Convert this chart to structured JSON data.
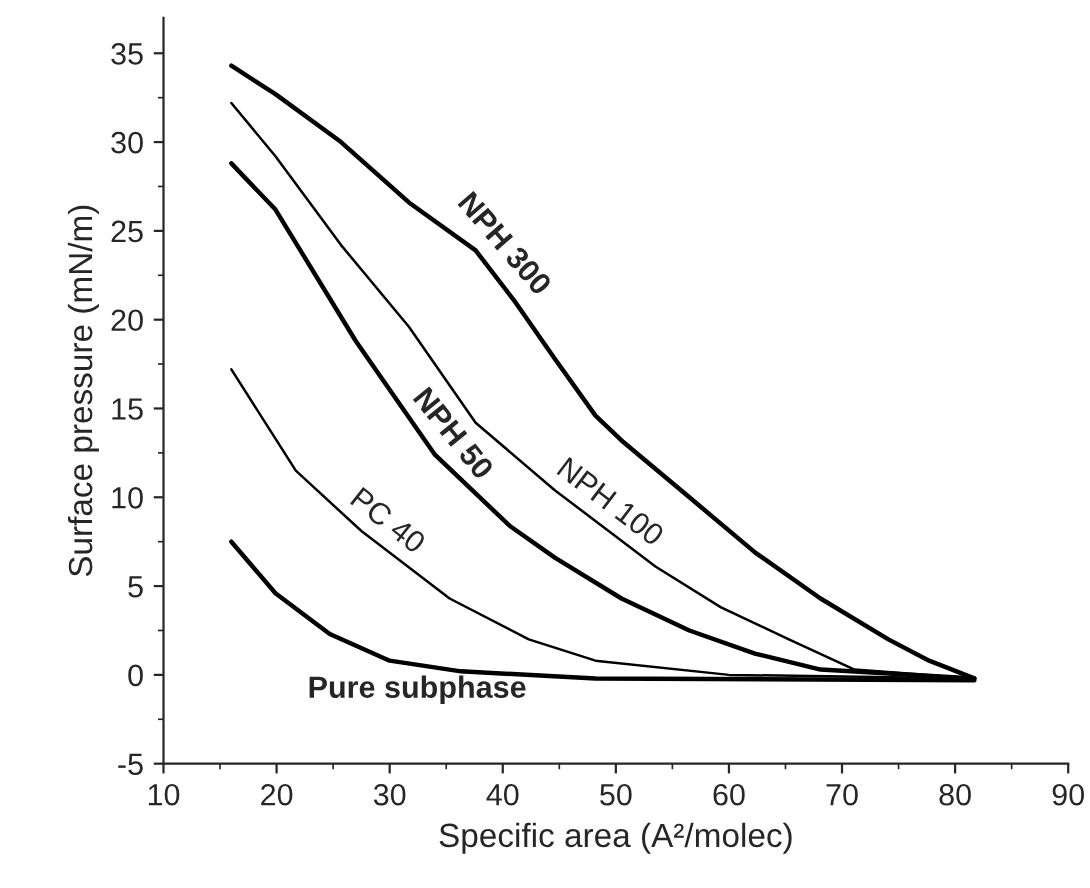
{
  "chart_data": {
    "type": "line",
    "xlabel": "Specific area (A²/molec)",
    "ylabel": "Surface pressure (mN/m)",
    "xlim": [
      10,
      90
    ],
    "xticks": [
      10,
      20,
      30,
      40,
      50,
      60,
      70,
      80,
      90
    ],
    "ylim": [
      -5,
      37
    ],
    "yticks": [
      -5,
      0,
      5,
      10,
      15,
      20,
      25,
      30,
      35
    ],
    "grid": false,
    "legend": false,
    "marker": "none",
    "line_style": "solid",
    "series": [
      {
        "name": "NPH 300",
        "color": "#000000",
        "x": [
          16,
          19.9,
          25.7,
          31.7,
          37.6,
          41.1,
          44.6,
          48.2,
          50.5,
          56.5,
          62.3,
          68.1,
          74.1,
          77.7,
          81.7
        ],
        "values": [
          34.3,
          32.7,
          30.0,
          26.6,
          23.9,
          21.0,
          17.8,
          14.6,
          13.2,
          10.0,
          6.9,
          4.3,
          2.0,
          0.8,
          -0.2
        ]
      },
      {
        "name": "NPH 100",
        "color": "#000000",
        "x": [
          16,
          19.9,
          25.7,
          31.7,
          37.6,
          44.6,
          53.5,
          59.3,
          65.3,
          71.1,
          81.7
        ],
        "values": [
          32.2,
          29.2,
          24.2,
          19.6,
          14.2,
          10.4,
          6.1,
          3.8,
          2.0,
          0.3,
          -0.2
        ]
      },
      {
        "name": "NPH 50",
        "color": "#000000",
        "x": [
          16,
          19.9,
          27,
          34.0,
          40.6,
          44.6,
          50.5,
          56.5,
          62.3,
          68.1,
          81.7
        ],
        "values": [
          28.8,
          26.2,
          18.8,
          12.4,
          8.4,
          6.6,
          4.3,
          2.5,
          1.2,
          0.3,
          -0.2
        ]
      },
      {
        "name": "PC 40",
        "color": "#000000",
        "x": [
          16,
          21.7,
          27.5,
          35.3,
          42.3,
          48.2,
          60,
          81.7
        ],
        "values": [
          17.2,
          11.5,
          8.1,
          4.3,
          2.0,
          0.8,
          0.0,
          -0.2
        ]
      },
      {
        "name": "Pure subphase",
        "color": "#000000",
        "x": [
          16,
          19.9,
          24.7,
          30,
          36.3,
          48.2,
          81.7
        ],
        "values": [
          7.5,
          4.6,
          2.3,
          0.8,
          0.2,
          -0.2,
          -0.3
        ]
      }
    ]
  }
}
